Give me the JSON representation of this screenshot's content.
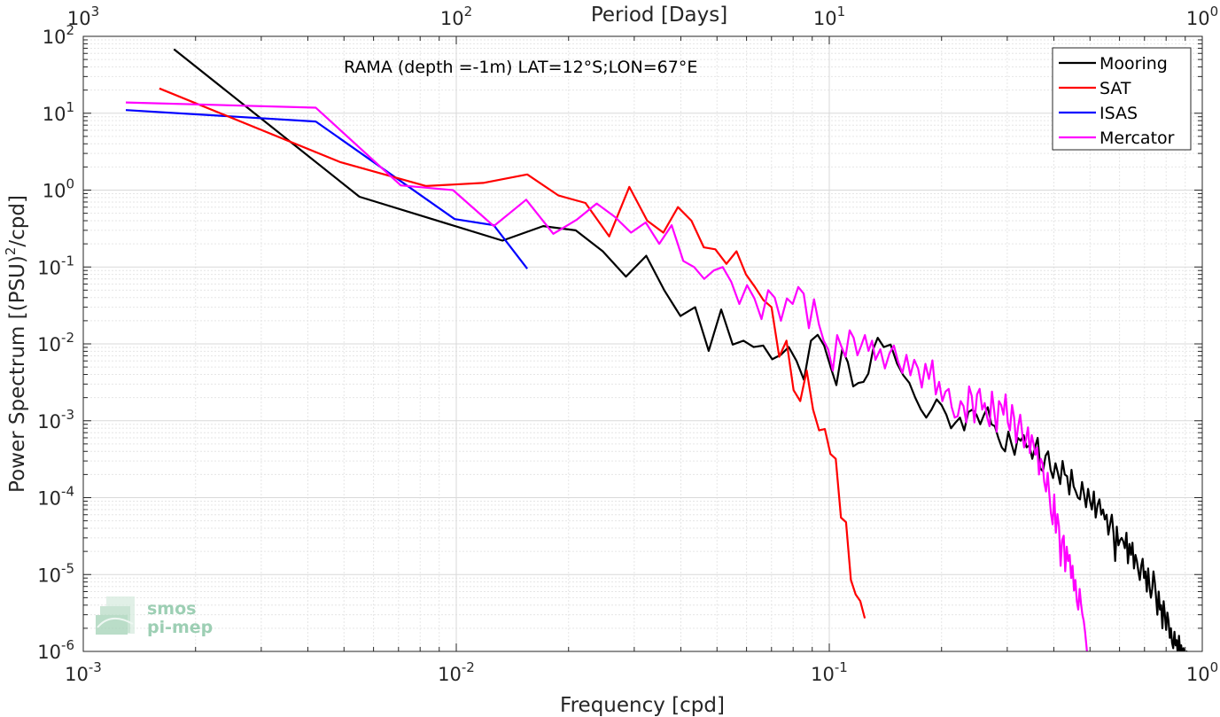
{
  "chart_data": {
    "type": "line",
    "xscale": "log",
    "yscale": "log",
    "xlim": [
      0.001,
      1
    ],
    "ylim": [
      1e-06,
      100
    ],
    "grid": true,
    "legend_position": "top-right",
    "annotation": "RAMA (depth =-1m) LAT=12°S;LON=67°E",
    "xlabel": "Frequency [cpd]",
    "ylabel_main": "Power Spectrum [(PSU)",
    "ylabel_sup": "2",
    "ylabel_tail": "/cpd]",
    "top_axis_label": "Period [Days]",
    "x_ticks": [
      {
        "base": "10",
        "exp": "-3",
        "value": 0.001
      },
      {
        "base": "10",
        "exp": "-2",
        "value": 0.01
      },
      {
        "base": "10",
        "exp": "-1",
        "value": 0.1
      },
      {
        "base": "10",
        "exp": "0",
        "value": 1
      }
    ],
    "y_ticks": [
      {
        "base": "10",
        "exp": "2",
        "value": 100
      },
      {
        "base": "10",
        "exp": "1",
        "value": 10
      },
      {
        "base": "10",
        "exp": "0",
        "value": 1
      },
      {
        "base": "10",
        "exp": "-1",
        "value": 0.1
      },
      {
        "base": "10",
        "exp": "-2",
        "value": 0.01
      },
      {
        "base": "10",
        "exp": "-3",
        "value": 0.001
      },
      {
        "base": "10",
        "exp": "-4",
        "value": 0.0001
      },
      {
        "base": "10",
        "exp": "-5",
        "value": 1e-05
      },
      {
        "base": "10",
        "exp": "-6",
        "value": 1e-06
      }
    ],
    "top_ticks": [
      {
        "base": "10",
        "exp": "3",
        "freq": 0.001
      },
      {
        "base": "10",
        "exp": "2",
        "freq": 0.01
      },
      {
        "base": "10",
        "exp": "1",
        "freq": 0.1
      },
      {
        "base": "10",
        "exp": "0",
        "freq": 1
      }
    ],
    "series": [
      {
        "name": "Mooring",
        "color": "#000000",
        "x": [
          0.00175,
          0.0055,
          0.0133,
          0.0171,
          0.0209,
          0.0247,
          0.0285,
          0.0323,
          0.0361,
          0.0399,
          0.0437,
          0.0475,
          0.0513,
          0.0551,
          0.0589,
          0.0627,
          0.0665,
          0.0703,
          0.0741,
          0.0779,
          0.0817,
          0.0855,
          0.0893,
          0.0931,
          0.0969,
          0.1007,
          0.1045,
          0.1083,
          0.1121,
          0.1159,
          0.1197,
          0.1235,
          0.1273,
          0.1311,
          0.1349,
          0.14,
          0.146,
          0.152,
          0.158,
          0.164,
          0.17,
          0.176,
          0.182,
          0.188,
          0.194,
          0.2,
          0.206,
          0.212,
          0.218,
          0.224,
          0.23,
          0.236,
          0.242,
          0.248,
          0.254,
          0.26,
          0.266,
          0.272,
          0.278,
          0.284,
          0.29,
          0.296,
          0.302,
          0.308,
          0.314,
          0.32,
          0.326,
          0.332,
          0.338,
          0.344,
          0.35,
          0.356,
          0.362,
          0.368,
          0.374,
          0.38,
          0.386,
          0.392,
          0.398,
          0.404,
          0.41,
          0.416,
          0.422,
          0.428,
          0.434,
          0.44,
          0.446,
          0.452,
          0.458,
          0.464,
          0.47,
          0.476,
          0.482,
          0.488,
          0.494,
          0.5,
          0.506,
          0.512,
          0.518,
          0.524,
          0.53,
          0.536,
          0.542,
          0.548,
          0.554,
          0.56,
          0.566,
          0.572,
          0.578,
          0.584,
          0.59,
          0.596,
          0.602,
          0.608,
          0.614,
          0.62,
          0.626,
          0.632,
          0.638,
          0.644,
          0.65,
          0.656,
          0.662,
          0.668,
          0.674,
          0.68,
          0.686,
          0.692,
          0.698,
          0.704,
          0.71,
          0.716,
          0.722,
          0.728,
          0.734,
          0.74,
          0.746,
          0.752,
          0.758,
          0.764,
          0.77,
          0.776,
          0.782,
          0.788,
          0.794,
          0.8,
          0.806,
          0.812,
          0.818,
          0.824,
          0.83,
          0.836,
          0.842,
          0.848,
          0.854,
          0.86,
          0.866,
          0.872,
          0.878,
          0.884,
          0.89,
          0.896,
          0.902,
          0.908,
          0.914,
          0.92
        ],
        "y": [
          68,
          0.82,
          0.22,
          0.34,
          0.3,
          0.16,
          0.075,
          0.14,
          0.05,
          0.023,
          0.03,
          0.0081,
          0.028,
          0.0098,
          0.011,
          0.0091,
          0.0095,
          0.0063,
          0.0072,
          0.0091,
          0.006,
          0.0034,
          0.011,
          0.0131,
          0.0095,
          0.0051,
          0.0029,
          0.0085,
          0.0058,
          0.0028,
          0.0031,
          0.0032,
          0.0041,
          0.0085,
          0.012,
          0.0091,
          0.0098,
          0.0055,
          0.0039,
          0.0031,
          0.002,
          0.0014,
          0.0011,
          0.0014,
          0.0019,
          0.0016,
          0.0012,
          0.0008,
          0.00095,
          0.0011,
          0.00075,
          0.0013,
          0.0014,
          0.0012,
          0.0009,
          0.0012,
          0.0015,
          0.0009,
          0.00085,
          0.0006,
          0.00045,
          0.0004,
          0.00072,
          0.0005,
          0.00036,
          0.0006,
          0.00055,
          0.00065,
          0.00045,
          0.00048,
          0.00032,
          0.00045,
          0.0006,
          0.00024,
          0.00022,
          0.00035,
          0.0004,
          0.00023,
          0.00018,
          0.00028,
          0.00021,
          0.00015,
          0.0003,
          0.0002,
          0.00019,
          0.00011,
          0.00023,
          0.00014,
          0.00012,
          0.0001,
          9.5e-05,
          0.00016,
          0.00011,
          7.5e-05,
          0.00013,
          9e-05,
          7e-05,
          0.00012,
          5.5e-05,
          8e-05,
          9.5e-05,
          6e-05,
          7e-05,
          5.2e-05,
          6e-05,
          3.3e-05,
          4.5e-05,
          6e-05,
          3.5e-05,
          1.5e-05,
          4.2e-05,
          2.4e-05,
          2.8e-05,
          3e-05,
          2.7e-05,
          2.2e-05,
          3.5e-05,
          1.4e-05,
          2.5e-05,
          1.8e-05,
          2.6e-05,
          1.2e-05,
          1.8e-05,
          1.5e-05,
          1.1e-05,
          8.5e-06,
          1.3e-05,
          1.6e-05,
          9e-06,
          1.1e-05,
          6e-06,
          1.2e-05,
          7e-06,
          5e-06,
          6.5e-06,
          1.1e-05,
          8e-06,
          5e-06,
          3e-06,
          6e-06,
          3.5e-06,
          4e-06,
          2e-06,
          4.5e-06,
          3e-06,
          1.9e-06,
          3.2e-06,
          2.5e-06,
          1.5e-06,
          2e-06,
          1.3e-06,
          1.1e-06,
          1.8e-06,
          1.2e-06,
          1.4e-06,
          9e-07,
          1.6e-06,
          1e-06,
          1.2e-06,
          8e-07,
          1.1e-06,
          1e-06,
          8e-07,
          1e-06,
          7e-07,
          8e-07
        ]
      },
      {
        "name": "SAT",
        "color": "#ff0000",
        "x": [
          0.0016,
          0.0049,
          0.0083,
          0.0118,
          0.0155,
          0.0188,
          0.0222,
          0.0257,
          0.0291,
          0.0325,
          0.0359,
          0.0393,
          0.0427,
          0.0461,
          0.0495,
          0.053,
          0.0564,
          0.0598,
          0.0632,
          0.0666,
          0.07,
          0.0734,
          0.0768,
          0.0802,
          0.0836,
          0.087,
          0.0905,
          0.0939,
          0.0973,
          0.1007,
          0.1041,
          0.1075,
          0.1109,
          0.1143,
          0.1177,
          0.1211,
          0.1245
        ],
        "y": [
          21,
          2.3,
          1.13,
          1.24,
          1.6,
          0.85,
          0.68,
          0.25,
          1.1,
          0.4,
          0.28,
          0.6,
          0.4,
          0.18,
          0.17,
          0.11,
          0.16,
          0.08,
          0.055,
          0.037,
          0.03,
          0.0068,
          0.011,
          0.0025,
          0.0018,
          0.0045,
          0.0014,
          0.00075,
          0.00078,
          0.00037,
          0.00032,
          5.5e-05,
          4.8e-05,
          8.5e-06,
          5.5e-06,
          4.5e-06,
          2.7e-06
        ]
      },
      {
        "name": "ISAS",
        "color": "#0000ff",
        "x": [
          0.0013,
          0.0042,
          0.0099,
          0.0126,
          0.0155
        ],
        "y": [
          11,
          7.8,
          0.42,
          0.35,
          0.095
        ]
      },
      {
        "name": "Mercator",
        "color": "#ff00ff",
        "x": [
          0.0013,
          0.0042,
          0.0071,
          0.0098,
          0.0126,
          0.0154,
          0.0182,
          0.021,
          0.0238,
          0.0266,
          0.0294,
          0.0322,
          0.035,
          0.0378,
          0.0406,
          0.0434,
          0.0462,
          0.049,
          0.0518,
          0.0546,
          0.0574,
          0.0602,
          0.063,
          0.0658,
          0.0686,
          0.0714,
          0.0742,
          0.077,
          0.0798,
          0.0826,
          0.0854,
          0.0882,
          0.091,
          0.0938,
          0.0966,
          0.0994,
          0.1022,
          0.105,
          0.1078,
          0.1106,
          0.1134,
          0.1162,
          0.119,
          0.1218,
          0.1246,
          0.1274,
          0.1302,
          0.133,
          0.137,
          0.141,
          0.145,
          0.149,
          0.153,
          0.157,
          0.161,
          0.165,
          0.169,
          0.173,
          0.177,
          0.181,
          0.185,
          0.189,
          0.193,
          0.197,
          0.201,
          0.205,
          0.209,
          0.213,
          0.217,
          0.221,
          0.225,
          0.229,
          0.233,
          0.237,
          0.241,
          0.245,
          0.249,
          0.253,
          0.257,
          0.261,
          0.265,
          0.269,
          0.273,
          0.277,
          0.281,
          0.285,
          0.289,
          0.293,
          0.297,
          0.301,
          0.305,
          0.309,
          0.313,
          0.317,
          0.321,
          0.325,
          0.329,
          0.333,
          0.337,
          0.341,
          0.345,
          0.349,
          0.353,
          0.357,
          0.361,
          0.365,
          0.369,
          0.373,
          0.377,
          0.381,
          0.385,
          0.389,
          0.393,
          0.397,
          0.401,
          0.405,
          0.409,
          0.413,
          0.417,
          0.421,
          0.425,
          0.429,
          0.433,
          0.437,
          0.441,
          0.445,
          0.449,
          0.453,
          0.457,
          0.461,
          0.465,
          0.469,
          0.473,
          0.477,
          0.481,
          0.485,
          0.489,
          0.493
        ],
        "y": [
          13.8,
          11.8,
          1.15,
          1.0,
          0.34,
          0.75,
          0.27,
          0.41,
          0.67,
          0.45,
          0.28,
          0.38,
          0.2,
          0.35,
          0.12,
          0.1,
          0.07,
          0.09,
          0.1,
          0.064,
          0.033,
          0.058,
          0.039,
          0.021,
          0.05,
          0.04,
          0.02,
          0.039,
          0.033,
          0.055,
          0.045,
          0.016,
          0.038,
          0.018,
          0.011,
          0.0084,
          0.0045,
          0.013,
          0.0092,
          0.0068,
          0.015,
          0.012,
          0.0071,
          0.0095,
          0.013,
          0.0081,
          0.011,
          0.0062,
          0.0085,
          0.0048,
          0.0075,
          0.0095,
          0.0058,
          0.0042,
          0.0072,
          0.0039,
          0.0062,
          0.0048,
          0.0027,
          0.0055,
          0.0035,
          0.0061,
          0.0022,
          0.0032,
          0.0018,
          0.0024,
          0.0026,
          0.0015,
          0.0011,
          0.00115,
          0.0018,
          0.00155,
          0.00095,
          0.0028,
          0.0021,
          0.00095,
          0.0022,
          0.0026,
          0.0014,
          0.0017,
          0.0011,
          0.00085,
          0.0024,
          0.0013,
          0.00072,
          0.0018,
          0.0016,
          0.0012,
          0.0022,
          0.00095,
          0.00075,
          0.0016,
          0.0011,
          0.00052,
          0.00085,
          0.0012,
          0.0007,
          0.00045,
          0.00058,
          0.00082,
          0.00038,
          0.00065,
          0.0005,
          0.00036,
          0.00045,
          0.0002,
          0.00032,
          0.00028,
          0.00016,
          0.00012,
          0.00021,
          0.00011,
          6.2e-05,
          4.5e-05,
          0.00011,
          3.5e-05,
          6.1e-05,
          4.2e-05,
          1.3e-05,
          2.8e-05,
          3.2e-05,
          1.1e-05,
          2.3e-05,
          1.5e-05,
          1.8e-05,
          9e-06,
          1.3e-05,
          6.2e-06,
          8.5e-06,
          4.5e-06,
          3.5e-06,
          6.5e-06,
          4.2e-06,
          3e-06,
          2.5e-06,
          1.8e-06,
          1.2e-06,
          7.8e-07
        ]
      }
    ],
    "watermark_line1": "smos",
    "watermark_line2": "pi-mep"
  }
}
